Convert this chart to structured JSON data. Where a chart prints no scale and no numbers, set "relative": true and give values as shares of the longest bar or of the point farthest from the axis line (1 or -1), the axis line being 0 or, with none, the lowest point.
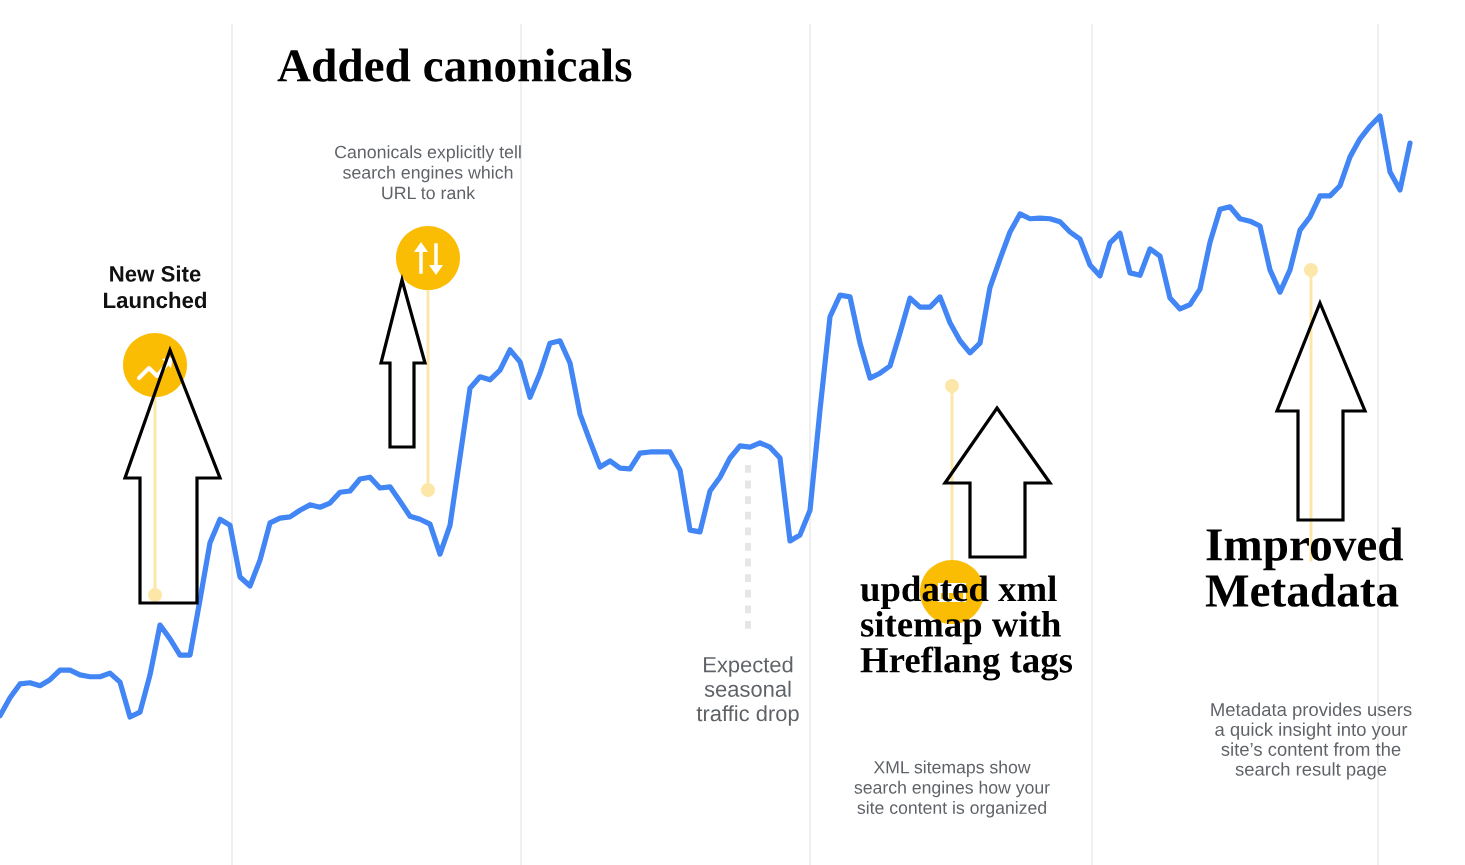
{
  "chart_data": {
    "type": "line",
    "relative": true,
    "categories": [
      null,
      null,
      null,
      null,
      null,
      null,
      null,
      null,
      null,
      null,
      null,
      null,
      null,
      null,
      null,
      null,
      null,
      null,
      null,
      null,
      null,
      null,
      null,
      null,
      null,
      null,
      null,
      null,
      null,
      null,
      null,
      null,
      null,
      null,
      null,
      null,
      null,
      null,
      null,
      null,
      null,
      null,
      null,
      null,
      null,
      null,
      null,
      null,
      null,
      null,
      null,
      null,
      null,
      null,
      null,
      null,
      null,
      null,
      null,
      null,
      null,
      null,
      null,
      null,
      null,
      null,
      null,
      null,
      null,
      null,
      null,
      null,
      null,
      null,
      null,
      null,
      null,
      null,
      null,
      null,
      null,
      null,
      null,
      null,
      null,
      null,
      null,
      null,
      null,
      null,
      null,
      null,
      null,
      null,
      null,
      null,
      null,
      null,
      null,
      null,
      null,
      null,
      null,
      null,
      null,
      null,
      null,
      null,
      null,
      null,
      null,
      null,
      null,
      null,
      null,
      null,
      null,
      null,
      null,
      null,
      null,
      null,
      null,
      null,
      null,
      null,
      null,
      null,
      null,
      null,
      null,
      null,
      null,
      null,
      null,
      null,
      null,
      null,
      null,
      null,
      null,
      null
    ],
    "series": [
      {
        "color": "#4285f4",
        "values": [
          0.002,
          0.032,
          0.055,
          0.057,
          0.052,
          0.062,
          0.078,
          0.078,
          0.07,
          0.067,
          0.067,
          0.073,
          0.058,
          0,
          0.008,
          0.07,
          0.153,
          0.13,
          0.103,
          0.103,
          0.195,
          0.29,
          0.329,
          0.319,
          0.233,
          0.218,
          0.261,
          0.323,
          0.331,
          0.333,
          0.344,
          0.353,
          0.349,
          0.356,
          0.374,
          0.376,
          0.396,
          0.399,
          0.381,
          0.383,
          0.359,
          0.334,
          0.329,
          0.321,
          0.271,
          0.319,
          0.433,
          0.547,
          0.566,
          0.561,
          0.577,
          0.611,
          0.591,
          0.532,
          0.572,
          0.622,
          0.626,
          0.589,
          0.504,
          0.459,
          0.416,
          0.426,
          0.414,
          0.413,
          0.439,
          0.441,
          0.441,
          0.441,
          0.411,
          0.311,
          0.308,
          0.376,
          0.399,
          0.431,
          0.451,
          0.449,
          0.456,
          0.449,
          0.431,
          0.293,
          0.303,
          0.344,
          0.511,
          0.666,
          0.702,
          0.699,
          0.622,
          0.564,
          0.572,
          0.584,
          0.639,
          0.697,
          0.682,
          0.682,
          0.699,
          0.656,
          0.626,
          0.606,
          0.622,
          0.715,
          0.762,
          0.807,
          0.837,
          0.829,
          0.83,
          0.829,
          0.824,
          0.807,
          0.795,
          0.752,
          0.734,
          0.789,
          0.805,
          0.739,
          0.735,
          0.779,
          0.767,
          0.697,
          0.679,
          0.686,
          0.712,
          0.79,
          0.845,
          0.849,
          0.829,
          0.825,
          0.817,
          0.744,
          0.707,
          0.744,
          0.81,
          0.832,
          0.867,
          0.867,
          0.884,
          0.932,
          0.962,
          0.983,
          1,
          0.907,
          0.877,
          0.955
        ]
      }
    ],
    "annotations": [
      "New Site\nLaunched",
      "Added canonicals",
      "Canonicals explicitly tell\nsearch engines which\nURL to rank",
      "Expected\nseasonal\ntraffic drop",
      "updated xml\nsitemap with\nHreflang tags",
      "XML sitemaps show\nsearch engines how your\nsite content is organized",
      "Improved\nMetadata",
      "Metadata provides users\na quick insight into your\nsite’s content from the\nsearch result page"
    ]
  }
}
